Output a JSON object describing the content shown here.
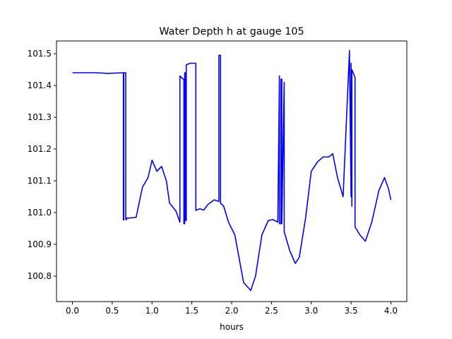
{
  "chart_data": {
    "type": "line",
    "title": "Water Depth h at gauge 105",
    "xlabel": "hours",
    "ylabel": "",
    "xlim": [
      -0.2,
      4.2
    ],
    "ylim": [
      100.72,
      101.54
    ],
    "xticks": [
      0.0,
      0.5,
      1.0,
      1.5,
      2.0,
      2.5,
      3.0,
      3.5,
      4.0
    ],
    "xtick_labels": [
      "0.0",
      "0.5",
      "1.0",
      "1.5",
      "2.0",
      "2.5",
      "3.0",
      "3.5",
      "4.0"
    ],
    "yticks": [
      100.8,
      100.9,
      101.0,
      101.1,
      101.2,
      101.3,
      101.4,
      101.5
    ],
    "ytick_labels": [
      "100.8",
      "100.9",
      "101.0",
      "101.1",
      "101.2",
      "101.3",
      "101.4",
      "101.5"
    ],
    "grid": false,
    "series": [
      {
        "color": "#0000ff",
        "x": [
          0.0,
          0.3,
          0.45,
          0.64,
          0.64,
          0.645,
          0.645,
          0.67,
          0.67,
          0.68,
          0.68,
          0.8,
          0.88,
          0.95,
          1.0,
          1.06,
          1.12,
          1.18,
          1.22,
          1.3,
          1.35,
          1.35,
          1.39,
          1.4,
          1.4,
          1.41,
          1.41,
          1.42,
          1.42,
          1.43,
          1.43,
          1.48,
          1.55,
          1.55,
          1.6,
          1.65,
          1.7,
          1.78,
          1.84,
          1.84,
          1.86,
          1.86,
          1.9,
          1.96,
          2.04,
          2.15,
          2.24,
          2.3,
          2.38,
          2.46,
          2.52,
          2.58,
          2.6,
          2.6,
          2.62,
          2.62,
          2.63,
          2.63,
          2.66,
          2.66,
          2.73,
          2.8,
          2.85,
          2.93,
          3.0,
          3.08,
          3.15,
          3.22,
          3.27,
          3.33,
          3.4,
          3.48,
          3.48,
          3.5,
          3.5,
          3.51,
          3.51,
          3.55,
          3.55,
          3.61,
          3.68,
          3.76,
          3.85,
          3.92,
          3.97,
          4.0
        ],
        "y": [
          101.44,
          101.44,
          101.438,
          101.44,
          100.977,
          100.977,
          101.44,
          101.44,
          100.978,
          100.978,
          100.982,
          100.985,
          101.08,
          101.11,
          101.165,
          101.13,
          101.145,
          101.1,
          101.03,
          101.005,
          100.97,
          101.43,
          101.42,
          101.42,
          100.965,
          100.965,
          101.44,
          101.44,
          100.975,
          100.975,
          101.465,
          101.47,
          101.47,
          101.007,
          101.012,
          101.008,
          101.025,
          101.04,
          101.035,
          101.495,
          101.495,
          101.03,
          101.02,
          100.97,
          100.93,
          100.78,
          100.755,
          100.8,
          100.93,
          100.975,
          100.978,
          100.97,
          101.43,
          100.965,
          100.965,
          101.42,
          101.42,
          100.965,
          101.41,
          100.94,
          100.88,
          100.84,
          100.86,
          100.985,
          101.13,
          101.16,
          101.175,
          101.175,
          101.185,
          101.11,
          101.05,
          101.51,
          101.5,
          101.05,
          101.47,
          101.02,
          101.45,
          101.425,
          100.955,
          100.93,
          100.91,
          100.97,
          101.07,
          101.11,
          101.075,
          101.04
        ]
      }
    ]
  }
}
